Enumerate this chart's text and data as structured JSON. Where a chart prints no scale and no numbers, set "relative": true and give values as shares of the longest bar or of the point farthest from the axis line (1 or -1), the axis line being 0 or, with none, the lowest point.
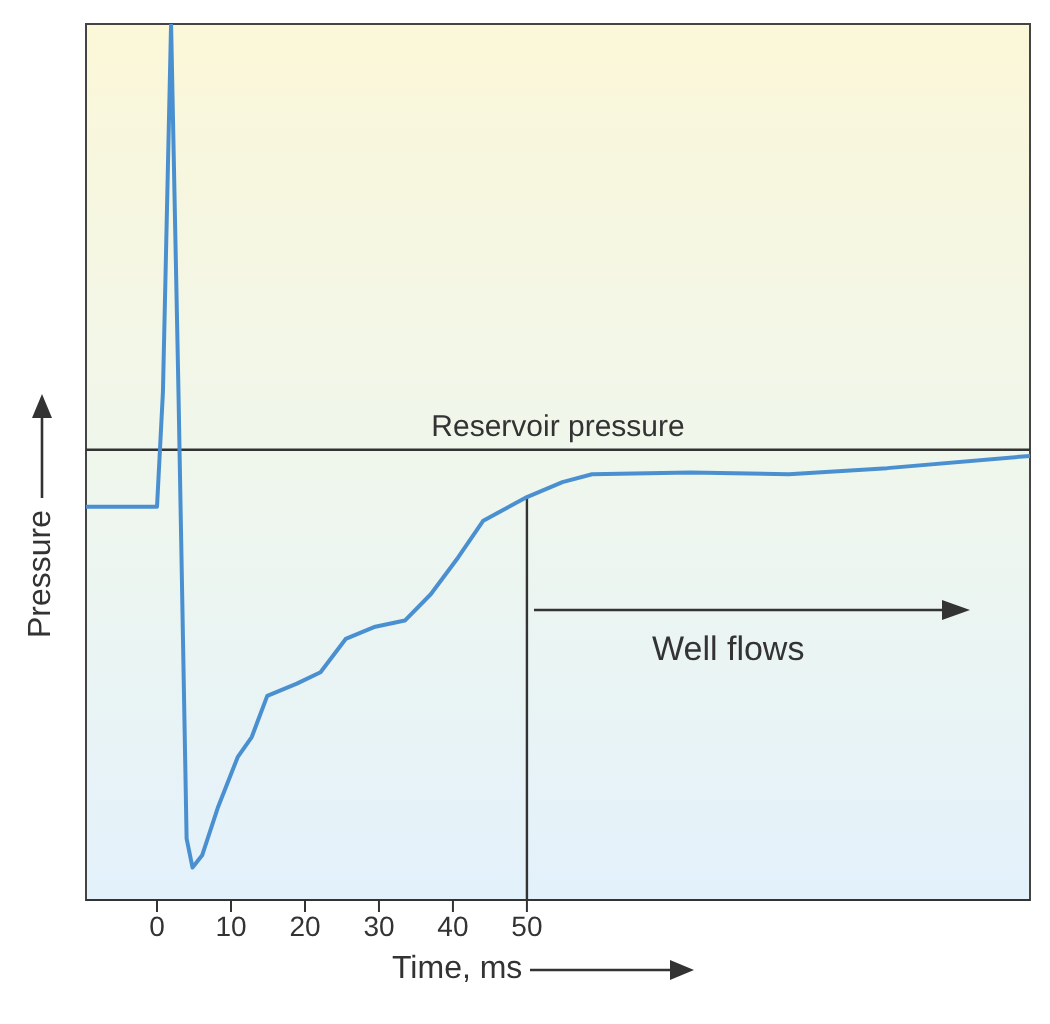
{
  "chart_data": {
    "type": "line",
    "relative": true,
    "xlabel": "Time, ms",
    "ylabel": "Pressure",
    "xlim": [
      -9.6,
      118
    ],
    "xticks": [
      0,
      10,
      20,
      30,
      40,
      50
    ],
    "marker": "none",
    "line_style": "solid",
    "series": [
      {
        "color": "#4a90d0",
        "x": [
          -9.6,
          0,
          0.8,
          1.9,
          2.9,
          4,
          4.8,
          6.1,
          8.2,
          10.9,
          12.8,
          14.9,
          18.9,
          22.1,
          25.5,
          29.5,
          33.5,
          37,
          40.7,
          44.1,
          50,
          54.8,
          58.8,
          72.1,
          85.4,
          98.7,
          118
        ],
        "values": [
          0.449,
          0.449,
          0.58,
          1.0,
          0.58,
          0.07,
          0.037,
          0.051,
          0.105,
          0.163,
          0.186,
          0.233,
          0.247,
          0.26,
          0.298,
          0.312,
          0.319,
          0.349,
          0.391,
          0.433,
          0.46,
          0.477,
          0.486,
          0.488,
          0.486,
          0.493,
          0.507
        ]
      }
    ],
    "ref_lines": [
      {
        "axis": "y",
        "value": 0.514,
        "label": "Reservoir pressure",
        "color": "#333333"
      },
      {
        "axis": "x",
        "value": 50,
        "color": "#333333"
      }
    ],
    "annotations": [
      "Well flows"
    ]
  }
}
